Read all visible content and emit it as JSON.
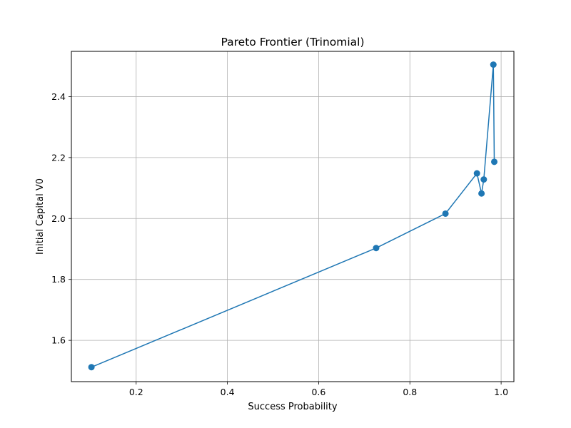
{
  "chart_data": {
    "type": "line",
    "title": "Pareto Frontier (Trinomial)",
    "xlabel": "Success Probability",
    "ylabel": "Initial Capital V0",
    "xlim": [
      0.058,
      1.028
    ],
    "ylim": [
      1.4645,
      2.5485
    ],
    "xticks": [
      0.2,
      0.4,
      0.6,
      0.8,
      1.0
    ],
    "xtick_labels": [
      "0.2",
      "0.4",
      "0.6",
      "0.8",
      "1.0"
    ],
    "yticks": [
      1.6,
      1.8,
      2.0,
      2.2,
      2.4
    ],
    "ytick_labels": [
      "1.6",
      "1.8",
      "2.0",
      "2.2",
      "2.4"
    ],
    "grid": true,
    "marker": "circle",
    "series": [
      {
        "color": "#1f77b4",
        "x": [
          0.102,
          0.726,
          0.878,
          0.947,
          0.957,
          0.962,
          0.983,
          0.985
        ],
        "y": [
          1.512,
          1.903,
          2.016,
          2.148,
          2.082,
          2.128,
          2.505,
          2.186
        ]
      }
    ]
  }
}
